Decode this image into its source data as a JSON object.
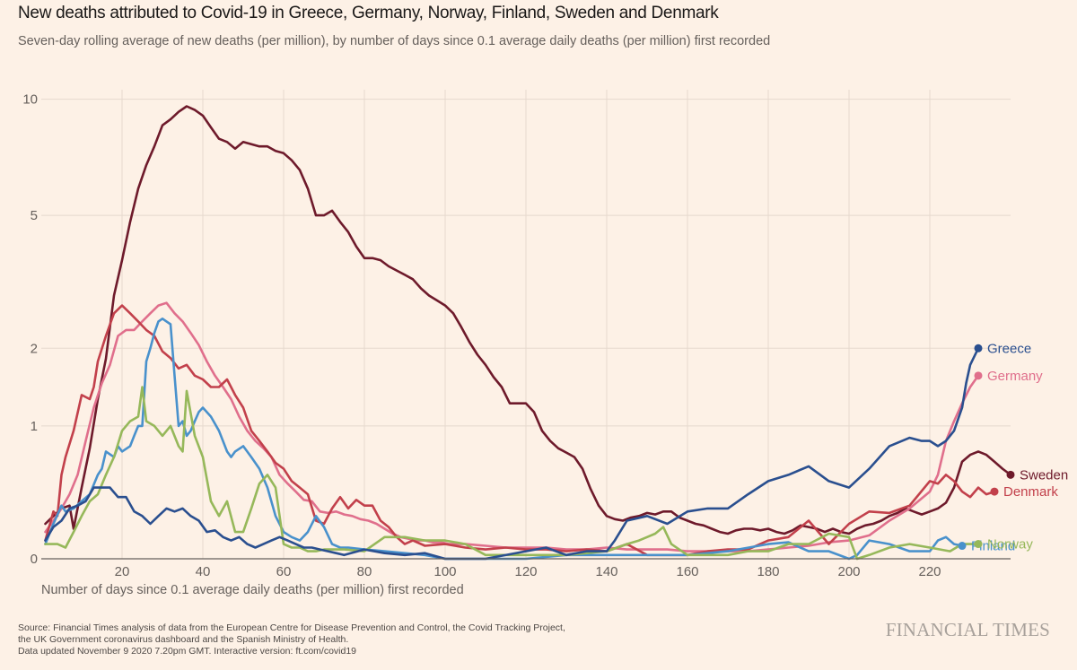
{
  "header": {
    "title": "New deaths attributed to Covid-19 in Greece, Germany, Norway, Finland, Sweden and Denmark",
    "subtitle": "Seven-day rolling average of new deaths (per million), by number of days since 0.1 average daily deaths (per million) first recorded"
  },
  "footer": {
    "source_line1": "Source: Financial Times analysis of data from the European Centre for Disease Prevention and Control, the Covid Tracking Project,",
    "source_line2": "the UK Government coronavirus dashboard and the Spanish Ministry of Health.",
    "source_line3": "Data updated November 9 2020 7.20pm GMT. Interactive version: ft.com/covid19",
    "brand": "FINANCIAL TIMES"
  },
  "chart_data": {
    "type": "line",
    "title": "New deaths attributed to Covid-19 in Greece, Germany, Norway, Finland, Sweden and Denmark",
    "subtitle": "Seven-day rolling average of new deaths (per million), by number of days since 0.1 average daily deaths (per million) first recorded",
    "xlabel": "Number of days since 0.1 average daily deaths (per million) first recorded",
    "ylabel": "",
    "y_scale": "log(1+y)",
    "xlim": [
      0,
      240
    ],
    "ylim": [
      0,
      10
    ],
    "x_ticks": [
      20,
      40,
      60,
      80,
      100,
      120,
      140,
      160,
      180,
      200,
      220
    ],
    "y_ticks": [
      0,
      1,
      2,
      5,
      10
    ],
    "grid": true,
    "legend": "inline end labels at right",
    "series": [
      {
        "name": "Sweden",
        "color": "#6e1a2b",
        "label_visible": "Swede",
        "x": [
          1,
          3,
          5,
          7,
          8,
          10,
          12,
          14,
          16,
          18,
          20,
          22,
          24,
          26,
          28,
          30,
          32,
          34,
          36,
          38,
          40,
          42,
          44,
          46,
          48,
          50,
          52,
          54,
          56,
          58,
          60,
          62,
          64,
          66,
          68,
          70,
          72,
          74,
          76,
          78,
          80,
          82,
          84,
          86,
          88,
          90,
          92,
          94,
          96,
          98,
          100,
          102,
          104,
          106,
          108,
          110,
          112,
          114,
          116,
          118,
          120,
          122,
          124,
          126,
          128,
          130,
          132,
          134,
          136,
          138,
          140,
          142,
          144,
          146,
          148,
          150,
          152,
          154,
          156,
          158,
          160,
          162,
          164,
          166,
          168,
          170,
          172,
          174,
          176,
          178,
          180,
          182,
          184,
          186,
          188,
          190,
          192,
          194,
          196,
          198,
          200,
          202,
          204,
          206,
          208,
          210,
          212,
          214,
          216,
          218,
          220,
          222,
          224,
          226,
          228,
          230,
          232,
          234,
          236,
          238,
          240
        ],
        "y": [
          0.2,
          0.25,
          0.3,
          0.32,
          0.17,
          0.45,
          0.78,
          1.3,
          1.84,
          2.95,
          3.75,
          4.8,
          5.9,
          6.8,
          7.6,
          8.6,
          8.9,
          9.3,
          9.6,
          9.4,
          9.1,
          8.5,
          7.95,
          7.8,
          7.5,
          7.8,
          7.7,
          7.6,
          7.6,
          7.4,
          7.3,
          7.0,
          6.6,
          5.9,
          5.0,
          5.0,
          5.15,
          4.8,
          4.5,
          4.1,
          3.8,
          3.8,
          3.75,
          3.6,
          3.5,
          3.4,
          3.3,
          3.1,
          2.95,
          2.85,
          2.75,
          2.6,
          2.35,
          2.1,
          1.9,
          1.75,
          1.58,
          1.45,
          1.25,
          1.25,
          1.25,
          1.15,
          0.95,
          0.85,
          0.78,
          0.74,
          0.7,
          0.6,
          0.44,
          0.32,
          0.25,
          0.23,
          0.22,
          0.24,
          0.25,
          0.27,
          0.26,
          0.28,
          0.28,
          0.24,
          0.22,
          0.2,
          0.19,
          0.17,
          0.15,
          0.14,
          0.16,
          0.17,
          0.17,
          0.16,
          0.17,
          0.15,
          0.14,
          0.16,
          0.19,
          0.18,
          0.17,
          0.15,
          0.17,
          0.15,
          0.14,
          0.17,
          0.19,
          0.2,
          0.22,
          0.25,
          0.27,
          0.3,
          0.28,
          0.26,
          0.28,
          0.3,
          0.34,
          0.45,
          0.66,
          0.72,
          0.75,
          0.72,
          0.66,
          0.6,
          0.55
        ]
      },
      {
        "name": "Germany",
        "color": "#e06f8c",
        "label_visible": "Germany",
        "x": [
          1,
          3,
          5,
          7,
          9,
          11,
          13,
          15,
          17,
          19,
          21,
          23,
          25,
          27,
          29,
          31,
          33,
          35,
          37,
          39,
          41,
          43,
          45,
          47,
          49,
          51,
          53,
          55,
          57,
          59,
          61,
          63,
          65,
          67,
          69,
          71,
          73,
          75,
          77,
          79,
          81,
          83,
          85,
          87,
          89,
          91,
          93,
          95,
          97,
          99,
          101,
          105,
          110,
          115,
          120,
          125,
          130,
          135,
          140,
          145,
          150,
          155,
          160,
          165,
          170,
          175,
          180,
          185,
          190,
          195,
          200,
          205,
          210,
          215,
          220,
          222,
          224,
          226,
          228,
          230,
          232
        ],
        "y": [
          0.15,
          0.22,
          0.3,
          0.4,
          0.55,
          0.85,
          1.2,
          1.5,
          1.75,
          2.2,
          2.3,
          2.3,
          2.45,
          2.6,
          2.75,
          2.8,
          2.6,
          2.45,
          2.25,
          2.05,
          1.8,
          1.6,
          1.45,
          1.3,
          1.1,
          0.95,
          0.85,
          0.78,
          0.7,
          0.55,
          0.48,
          0.42,
          0.36,
          0.35,
          0.28,
          0.27,
          0.28,
          0.26,
          0.25,
          0.23,
          0.22,
          0.2,
          0.17,
          0.14,
          0.12,
          0.11,
          0.1,
          0.1,
          0.09,
          0.09,
          0.08,
          0.08,
          0.07,
          0.06,
          0.06,
          0.06,
          0.05,
          0.05,
          0.06,
          0.05,
          0.05,
          0.05,
          0.04,
          0.04,
          0.04,
          0.04,
          0.05,
          0.06,
          0.07,
          0.09,
          0.1,
          0.13,
          0.22,
          0.3,
          0.42,
          0.55,
          0.85,
          1.05,
          1.25,
          1.45,
          1.6
        ]
      },
      {
        "name": "Denmark",
        "color": "#c2404b",
        "label_visible": "Denmark",
        "x": [
          1,
          3,
          4,
          5,
          6,
          8,
          10,
          12,
          13,
          14,
          16,
          18,
          20,
          22,
          24,
          26,
          28,
          30,
          32,
          34,
          36,
          38,
          40,
          42,
          44,
          46,
          48,
          50,
          52,
          54,
          56,
          58,
          60,
          62,
          64,
          66,
          68,
          70,
          72,
          74,
          76,
          78,
          80,
          82,
          84,
          86,
          88,
          90,
          92,
          95,
          100,
          105,
          110,
          115,
          120,
          125,
          130,
          135,
          140,
          145,
          150,
          155,
          160,
          165,
          170,
          175,
          180,
          185,
          190,
          195,
          200,
          205,
          210,
          215,
          220,
          222,
          224,
          226,
          228,
          230,
          232,
          234,
          236
        ],
        "y": [
          0.1,
          0.28,
          0.25,
          0.55,
          0.7,
          0.95,
          1.35,
          1.3,
          1.45,
          1.8,
          2.2,
          2.6,
          2.75,
          2.6,
          2.45,
          2.3,
          2.2,
          1.95,
          1.85,
          1.7,
          1.75,
          1.6,
          1.55,
          1.45,
          1.45,
          1.55,
          1.35,
          1.2,
          0.95,
          0.85,
          0.75,
          0.65,
          0.6,
          0.5,
          0.45,
          0.4,
          0.22,
          0.2,
          0.3,
          0.38,
          0.3,
          0.36,
          0.32,
          0.32,
          0.22,
          0.18,
          0.12,
          0.08,
          0.1,
          0.07,
          0.08,
          0.06,
          0.05,
          0.06,
          0.05,
          0.05,
          0.04,
          0.05,
          0.04,
          0.08,
          0.02,
          0.02,
          0.02,
          0.04,
          0.05,
          0.05,
          0.1,
          0.12,
          0.22,
          0.08,
          0.2,
          0.28,
          0.27,
          0.32,
          0.5,
          0.48,
          0.55,
          0.5,
          0.42,
          0.38,
          0.45,
          0.4,
          0.42
        ]
      },
      {
        "name": "Finland",
        "color": "#4991cc",
        "label_visible": "Finland",
        "x": [
          1,
          3,
          5,
          6,
          8,
          10,
          12,
          14,
          15,
          16,
          18,
          19,
          20,
          22,
          23,
          24,
          25,
          26,
          27,
          28,
          29,
          30,
          31,
          32,
          33,
          34,
          35,
          36,
          37,
          38,
          39,
          40,
          42,
          44,
          46,
          47,
          48,
          50,
          52,
          54,
          56,
          58,
          60,
          62,
          64,
          66,
          68,
          70,
          72,
          74,
          76,
          80,
          85,
          90,
          95,
          100,
          110,
          120,
          130,
          140,
          150,
          160,
          170,
          180,
          185,
          190,
          195,
          200,
          202,
          205,
          210,
          215,
          220,
          222,
          224,
          226,
          228
        ],
        "y": [
          0.08,
          0.2,
          0.32,
          0.28,
          0.3,
          0.35,
          0.4,
          0.55,
          0.6,
          0.75,
          0.7,
          0.8,
          0.75,
          0.8,
          0.9,
          1.0,
          1.0,
          1.8,
          2.0,
          2.25,
          2.45,
          2.5,
          2.45,
          2.4,
          1.6,
          1.0,
          1.05,
          0.9,
          0.95,
          1.05,
          1.15,
          1.2,
          1.1,
          0.95,
          0.75,
          0.7,
          0.75,
          0.8,
          0.7,
          0.6,
          0.45,
          0.25,
          0.15,
          0.12,
          0.1,
          0.15,
          0.25,
          0.18,
          0.08,
          0.06,
          0.06,
          0.05,
          0.04,
          0.03,
          0.02,
          0.0,
          0.0,
          0.0,
          0.02,
          0.02,
          0.02,
          0.02,
          0.04,
          0.08,
          0.09,
          0.04,
          0.04,
          0.0,
          0.02,
          0.1,
          0.08,
          0.04,
          0.04,
          0.1,
          0.12,
          0.08,
          0.07
        ]
      },
      {
        "name": "Norway",
        "color": "#96b85a",
        "label_visible": "Norway",
        "x": [
          1,
          4,
          6,
          8,
          10,
          12,
          14,
          16,
          18,
          20,
          22,
          24,
          25,
          26,
          28,
          30,
          32,
          34,
          35,
          36,
          38,
          40,
          42,
          44,
          46,
          48,
          50,
          52,
          54,
          56,
          58,
          60,
          62,
          64,
          66,
          68,
          70,
          75,
          80,
          85,
          90,
          95,
          100,
          105,
          110,
          120,
          130,
          140,
          145,
          148,
          150,
          152,
          154,
          156,
          160,
          165,
          170,
          175,
          180,
          185,
          190,
          195,
          200,
          202,
          205,
          210,
          215,
          220,
          225,
          228,
          232
        ],
        "y": [
          0.08,
          0.08,
          0.06,
          0.15,
          0.25,
          0.35,
          0.4,
          0.55,
          0.7,
          0.95,
          1.05,
          1.1,
          1.45,
          1.05,
          1.0,
          0.9,
          1.0,
          0.8,
          0.75,
          1.4,
          0.9,
          0.7,
          0.35,
          0.25,
          0.35,
          0.15,
          0.15,
          0.3,
          0.48,
          0.55,
          0.45,
          0.08,
          0.06,
          0.06,
          0.04,
          0.04,
          0.05,
          0.05,
          0.04,
          0.12,
          0.12,
          0.1,
          0.1,
          0.08,
          0.02,
          0.02,
          0.02,
          0.04,
          0.08,
          0.1,
          0.12,
          0.14,
          0.18,
          0.08,
          0.02,
          0.02,
          0.02,
          0.04,
          0.04,
          0.08,
          0.08,
          0.14,
          0.12,
          0.0,
          0.02,
          0.06,
          0.08,
          0.06,
          0.04,
          0.08,
          0.08
        ]
      },
      {
        "name": "Greece",
        "color": "#2a4f8f",
        "label_visible": "Greece",
        "x": [
          1,
          3,
          5,
          7,
          9,
          11,
          13,
          15,
          17,
          19,
          21,
          23,
          25,
          27,
          29,
          31,
          33,
          35,
          37,
          39,
          41,
          43,
          45,
          47,
          49,
          51,
          53,
          55,
          57,
          59,
          61,
          63,
          65,
          67,
          69,
          71,
          73,
          75,
          80,
          85,
          90,
          95,
          100,
          110,
          120,
          125,
          130,
          135,
          140,
          142,
          145,
          150,
          155,
          160,
          165,
          170,
          175,
          180,
          185,
          190,
          195,
          200,
          205,
          210,
          215,
          218,
          220,
          222,
          224,
          226,
          228,
          229,
          230,
          232
        ],
        "y": [
          0.1,
          0.18,
          0.22,
          0.3,
          0.32,
          0.35,
          0.45,
          0.45,
          0.45,
          0.38,
          0.38,
          0.28,
          0.25,
          0.2,
          0.25,
          0.3,
          0.28,
          0.3,
          0.25,
          0.22,
          0.15,
          0.16,
          0.12,
          0.1,
          0.12,
          0.08,
          0.06,
          0.08,
          0.1,
          0.12,
          0.1,
          0.08,
          0.06,
          0.06,
          0.05,
          0.04,
          0.03,
          0.02,
          0.05,
          0.03,
          0.02,
          0.03,
          0.0,
          0.0,
          0.04,
          0.06,
          0.02,
          0.04,
          0.04,
          0.1,
          0.22,
          0.25,
          0.2,
          0.28,
          0.3,
          0.3,
          0.4,
          0.5,
          0.55,
          0.62,
          0.5,
          0.45,
          0.6,
          0.8,
          0.88,
          0.85,
          0.85,
          0.8,
          0.85,
          0.95,
          1.2,
          1.5,
          1.75,
          2.0
        ]
      }
    ],
    "end_labels": [
      {
        "name": "Greece",
        "value": 2.0,
        "day": 232
      },
      {
        "name": "Germany",
        "value": 1.6,
        "day": 232
      },
      {
        "name": "Sweden",
        "value": 0.55,
        "day": 240
      },
      {
        "name": "Denmark",
        "value": 0.42,
        "day": 236
      },
      {
        "name": "Finland",
        "value": 0.07,
        "day": 228
      },
      {
        "name": "Norway",
        "value": 0.08,
        "day": 232
      }
    ]
  }
}
